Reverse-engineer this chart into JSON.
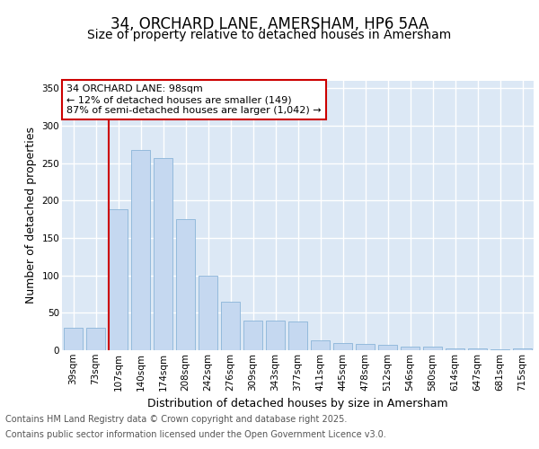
{
  "title_line1": "34, ORCHARD LANE, AMERSHAM, HP6 5AA",
  "title_line2": "Size of property relative to detached houses in Amersham",
  "xlabel": "Distribution of detached houses by size in Amersham",
  "ylabel": "Number of detached properties",
  "categories": [
    "39sqm",
    "73sqm",
    "107sqm",
    "140sqm",
    "174sqm",
    "208sqm",
    "242sqm",
    "276sqm",
    "309sqm",
    "343sqm",
    "377sqm",
    "411sqm",
    "445sqm",
    "478sqm",
    "512sqm",
    "546sqm",
    "580sqm",
    "614sqm",
    "647sqm",
    "681sqm",
    "715sqm"
  ],
  "values": [
    30,
    30,
    188,
    268,
    257,
    175,
    100,
    65,
    40,
    40,
    38,
    13,
    10,
    9,
    7,
    5,
    5,
    3,
    2,
    1,
    2
  ],
  "bar_color": "#c5d8f0",
  "bar_edge_color": "#8ab4d8",
  "fig_background": "#ffffff",
  "plot_background": "#dce8f5",
  "grid_color": "#ffffff",
  "red_line_color": "#cc0000",
  "red_line_index": 2,
  "annotation_line1": "34 ORCHARD LANE: 98sqm",
  "annotation_line2": "← 12% of detached houses are smaller (149)",
  "annotation_line3": "87% of semi-detached houses are larger (1,042) →",
  "annotation_box_color": "#ffffff",
  "annotation_box_edge": "#cc0000",
  "ylim": [
    0,
    360
  ],
  "yticks": [
    0,
    50,
    100,
    150,
    200,
    250,
    300,
    350
  ],
  "footer_line1": "Contains HM Land Registry data © Crown copyright and database right 2025.",
  "footer_line2": "Contains public sector information licensed under the Open Government Licence v3.0.",
  "title_fontsize": 12,
  "subtitle_fontsize": 10,
  "ylabel_fontsize": 9,
  "xlabel_fontsize": 9,
  "tick_fontsize": 7.5,
  "annotation_fontsize": 8,
  "footer_fontsize": 7
}
